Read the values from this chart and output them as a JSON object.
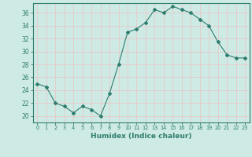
{
  "x": [
    0,
    1,
    2,
    3,
    4,
    5,
    6,
    7,
    8,
    9,
    10,
    11,
    12,
    13,
    14,
    15,
    16,
    17,
    18,
    19,
    20,
    21,
    22,
    23
  ],
  "y": [
    25,
    24.5,
    22,
    21.5,
    20.5,
    21.5,
    21,
    20,
    23.5,
    28,
    33,
    33.5,
    34.5,
    36.5,
    36,
    37,
    36.5,
    36,
    35,
    34,
    31.5,
    29.5,
    29,
    29
  ],
  "line_color": "#2e7d6e",
  "marker": "D",
  "marker_size": 2.0,
  "bg_color": "#ceeae4",
  "grid_color": "#e8c8c8",
  "xlabel": "Humidex (Indice chaleur)",
  "ylim": [
    19,
    37.5
  ],
  "xlim": [
    -0.5,
    23.5
  ],
  "yticks": [
    20,
    22,
    24,
    26,
    28,
    30,
    32,
    34,
    36
  ],
  "xticks": [
    0,
    1,
    2,
    3,
    4,
    5,
    6,
    7,
    8,
    9,
    10,
    11,
    12,
    13,
    14,
    15,
    16,
    17,
    18,
    19,
    20,
    21,
    22,
    23
  ],
  "xtick_labels": [
    "0",
    "1",
    "2",
    "3",
    "4",
    "5",
    "6",
    "7",
    "8",
    "9",
    "10",
    "11",
    "12",
    "13",
    "14",
    "15",
    "16",
    "17",
    "18",
    "19",
    "20",
    "21",
    "22",
    "23"
  ],
  "tick_color": "#2e7d6e",
  "label_color": "#2e7d6e",
  "spine_color": "#2e7d6e"
}
